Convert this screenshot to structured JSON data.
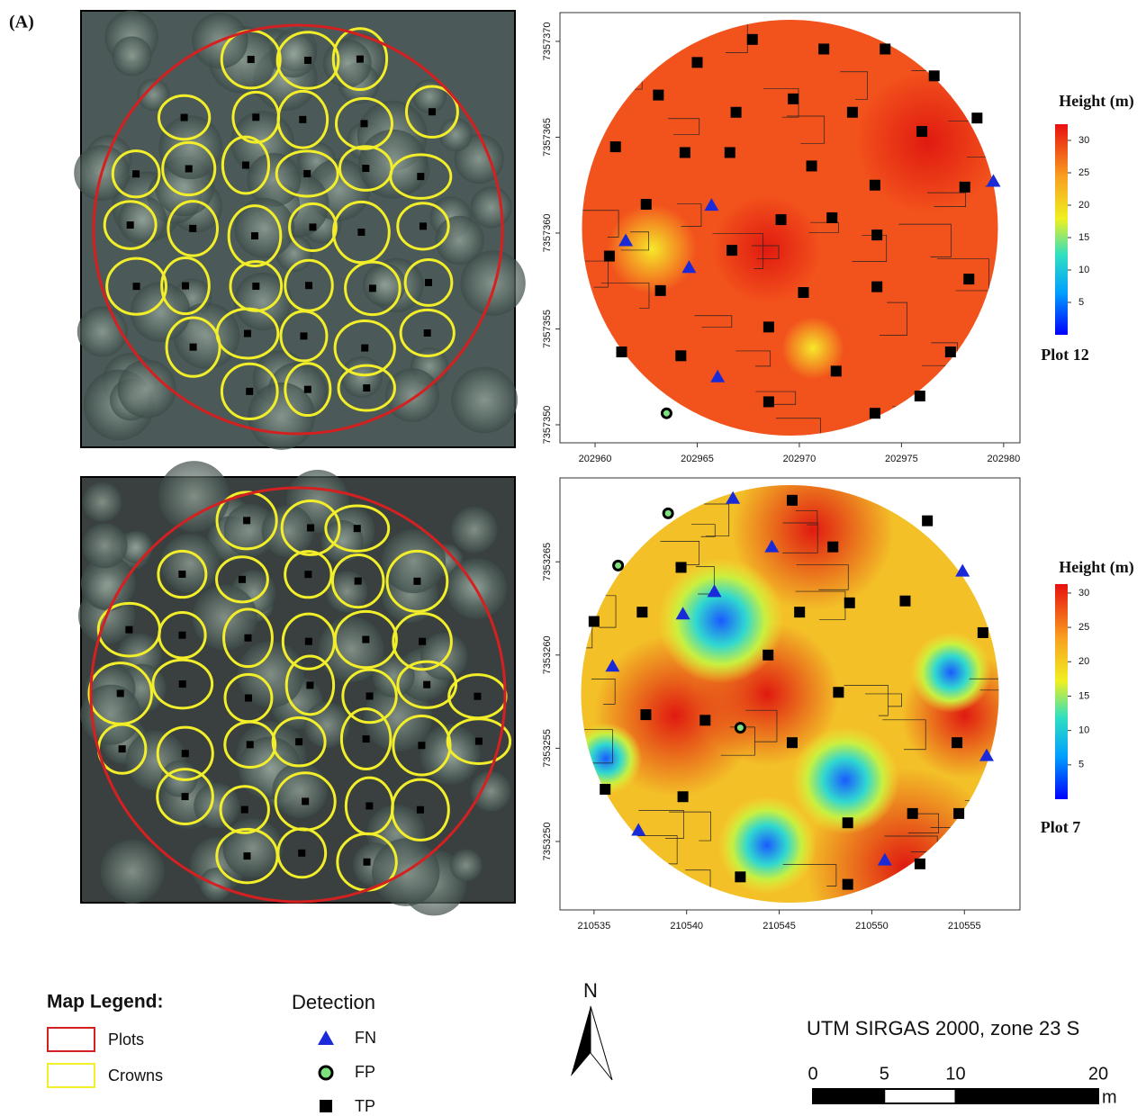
{
  "panel_label": "(A)",
  "plots": [
    {
      "title": "Plot 12",
      "xlim": [
        202958.28,
        202980.8
      ],
      "ylim": [
        7357349.06,
        7357371.5
      ],
      "xticks": [
        202960,
        202965,
        202970,
        202975,
        202980
      ],
      "yticks": [
        7357350,
        7357355,
        7357360,
        7357365,
        7357370
      ],
      "colorbar": {
        "title": "Height (m)",
        "lim": [
          0,
          32.5
        ],
        "ticks": [
          5,
          10,
          15,
          20,
          25,
          30
        ]
      },
      "points": {
        "FN": {
          "x": [
            202965.7,
            202961.5,
            202964.6,
            202966.0,
            202979.5
          ],
          "y": [
            7357361.45,
            7357359.6,
            7357358.2,
            7357352.5,
            7357362.7
          ]
        },
        "FP": {
          "x": [
            202963.5
          ],
          "y": [
            7357350.6
          ]
        },
        "TP": {
          "x": [
            202967.7,
            202971.2,
            202974.2,
            202965.0,
            202976.6,
            202963.1,
            202969.7,
            202966.9,
            202972.6,
            202978.7,
            202976.0,
            202961.0,
            202964.4,
            202966.6,
            202970.6,
            202973.7,
            202978.1,
            202962.5,
            202969.1,
            202971.6,
            202973.8,
            202960.7,
            202966.7,
            202978.3,
            202963.2,
            202970.2,
            202973.8,
            202968.5,
            202961.3,
            202977.4,
            202964.2,
            202971.8,
            202968.5,
            202975.9,
            202973.7
          ],
          "y": [
            7357370.1,
            7357369.6,
            7357369.6,
            7357368.9,
            7357368.2,
            7357367.2,
            7357367.0,
            7357366.3,
            7357366.3,
            7357366.0,
            7357365.3,
            7357364.5,
            7357364.2,
            7357364.2,
            7357363.5,
            7357362.5,
            7357362.4,
            7357361.5,
            7357360.7,
            7357360.8,
            7357359.9,
            7357358.8,
            7357359.1,
            7357357.6,
            7357357.0,
            7357356.9,
            7357357.2,
            7357355.1,
            7357353.8,
            7357353.8,
            7357353.6,
            7357352.8,
            7357351.2,
            7357351.5,
            7357350.6
          ]
        }
      }
    },
    {
      "title": "Plot 7",
      "xlim": [
        210533.16,
        210558.0
      ],
      "ylim": [
        7353246.33,
        7353269.5
      ],
      "xticks": [
        210535,
        210540,
        210545,
        210550,
        210555
      ],
      "yticks": [
        7353250,
        7353255,
        7353260,
        7353265
      ],
      "colorbar": {
        "title": "Height (m)",
        "lim": [
          0,
          31.3
        ],
        "ticks": [
          5,
          10,
          15,
          20,
          25,
          30
        ]
      },
      "points": {
        "FN": {
          "x": [
            210542.5,
            210544.6,
            210554.9,
            210541.5,
            210539.8,
            210536.0,
            210556.2,
            210537.4,
            210550.7
          ],
          "y": [
            7353268.4,
            7353265.8,
            7353264.5,
            7353263.4,
            7353262.2,
            7353259.4,
            7353254.6,
            7353250.6,
            7353249.0
          ]
        },
        "FP": {
          "x": [
            210539.0,
            210536.3,
            210542.9
          ],
          "y": [
            7353267.6,
            7353264.8,
            7353256.1
          ]
        },
        "TP": {
          "x": [
            210545.7,
            210553.0,
            210547.9,
            210539.7,
            210537.6,
            210546.1,
            210548.8,
            210551.8,
            210535.0,
            210556.0,
            210544.4,
            210548.2,
            210537.8,
            210541.0,
            210545.7,
            210554.6,
            210535.6,
            210539.8,
            210548.7,
            210554.7,
            210552.2,
            210542.9,
            210548.7,
            210552.6
          ],
          "y": [
            7353268.3,
            7353267.2,
            7353265.8,
            7353264.7,
            7353262.3,
            7353262.3,
            7353262.8,
            7353262.9,
            7353261.8,
            7353261.2,
            7353260.0,
            7353258.0,
            7353256.8,
            7353256.5,
            7353255.3,
            7353255.3,
            7353252.8,
            7353252.4,
            7353251.0,
            7353251.5,
            7353251.5,
            7353248.1,
            7353247.7,
            7353248.8
          ]
        }
      }
    }
  ],
  "legend": {
    "title": "Map Legend:",
    "items": [
      "Plots",
      "Crowns"
    ]
  },
  "detection": {
    "title": "Detection",
    "items": [
      "FN",
      "FP",
      "TP"
    ]
  },
  "north": "N",
  "crs": "UTM SIRGAS 2000, zone 23 S",
  "scale": {
    "ticks": [
      0,
      5,
      10,
      20
    ],
    "unit": "m"
  }
}
